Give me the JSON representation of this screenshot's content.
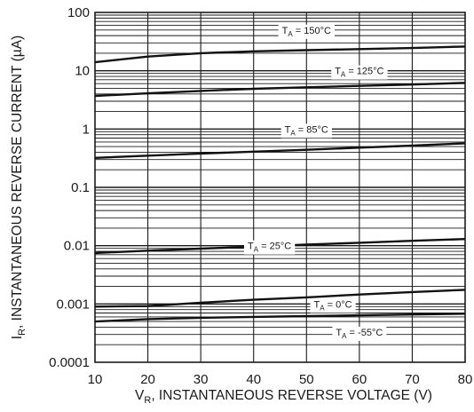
{
  "chart_data": {
    "type": "line",
    "title": "",
    "xlabel": {
      "main": "V",
      "sub": "R",
      "rest": ", INSTANTANEOUS REVERSE VOLTAGE (V)"
    },
    "ylabel": {
      "main": "I",
      "sub": "R",
      "rest": ", INSTANTANEOUS REVERSE CURRENT (µA)"
    },
    "xlim": [
      10,
      80
    ],
    "ylim": [
      0.0001,
      100
    ],
    "yscale": "log",
    "grid": true,
    "x_ticks": [
      "10",
      "20",
      "30",
      "40",
      "50",
      "60",
      "70",
      "80"
    ],
    "y_ticks": [
      "0.0001",
      "0.001",
      "0.01",
      "0.1",
      "1",
      "10",
      "100"
    ],
    "series": [
      {
        "name": {
          "main": "T",
          "sub": "A",
          "rest": " = 150°C"
        },
        "x": [
          10,
          20,
          30,
          40,
          50,
          60,
          70,
          80
        ],
        "y": [
          14,
          17.5,
          20,
          21.5,
          22.5,
          23.5,
          24.5,
          26
        ]
      },
      {
        "name": {
          "main": "T",
          "sub": "A",
          "rest": " = 125°C"
        },
        "x": [
          10,
          20,
          30,
          40,
          50,
          60,
          70,
          80
        ],
        "y": [
          3.7,
          4.1,
          4.5,
          4.9,
          5.2,
          5.5,
          5.8,
          6.2
        ]
      },
      {
        "name": {
          "main": "T",
          "sub": "A",
          "rest": " = 85°C"
        },
        "x": [
          10,
          20,
          30,
          40,
          50,
          60,
          70,
          80
        ],
        "y": [
          0.32,
          0.35,
          0.38,
          0.41,
          0.44,
          0.48,
          0.52,
          0.57
        ]
      },
      {
        "name": {
          "main": "T",
          "sub": "A",
          "rest": " = 25°C"
        },
        "x": [
          10,
          20,
          30,
          40,
          50,
          60,
          70,
          80
        ],
        "y": [
          0.0075,
          0.0082,
          0.0089,
          0.0096,
          0.0104,
          0.0112,
          0.0121,
          0.013
        ]
      },
      {
        "name": {
          "main": "T",
          "sub": "A",
          "rest": " = 0°C"
        },
        "x": [
          10,
          20,
          30,
          40,
          50,
          60,
          70,
          80
        ],
        "y": [
          0.0009,
          0.00092,
          0.00105,
          0.00118,
          0.0013,
          0.00145,
          0.0016,
          0.00175
        ]
      },
      {
        "name": {
          "main": "T",
          "sub": "A",
          "rest": " = -55°C"
        },
        "x": [
          10,
          20,
          30,
          40,
          50,
          60,
          70,
          80
        ],
        "y": [
          0.0005,
          0.00055,
          0.00058,
          0.0006,
          0.00062,
          0.00064,
          0.00066,
          0.00068
        ]
      }
    ]
  }
}
